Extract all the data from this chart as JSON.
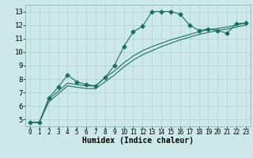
{
  "xlabel": "Humidex (Indice chaleur)",
  "ylabel": "",
  "xlim": [
    -0.5,
    23.5
  ],
  "ylim": [
    4.5,
    13.5
  ],
  "xticks": [
    0,
    1,
    2,
    3,
    4,
    5,
    6,
    7,
    8,
    9,
    10,
    11,
    12,
    13,
    14,
    15,
    16,
    17,
    18,
    19,
    20,
    21,
    22,
    23
  ],
  "yticks": [
    5,
    6,
    7,
    8,
    9,
    10,
    11,
    12,
    13
  ],
  "bg_color": "#cce8e8",
  "grid_color": "#b8d8d8",
  "line_color": "#1a7060",
  "series1": [
    [
      0,
      4.8
    ],
    [
      1,
      4.8
    ],
    [
      2,
      6.6
    ],
    [
      3,
      7.4
    ],
    [
      4,
      8.3
    ],
    [
      5,
      7.8
    ],
    [
      6,
      7.6
    ],
    [
      7,
      7.5
    ],
    [
      8,
      8.1
    ],
    [
      9,
      9.0
    ],
    [
      10,
      10.4
    ],
    [
      11,
      11.5
    ],
    [
      12,
      11.9
    ],
    [
      13,
      13.0
    ],
    [
      14,
      13.0
    ],
    [
      15,
      13.0
    ],
    [
      16,
      12.8
    ],
    [
      17,
      12.0
    ],
    [
      18,
      11.6
    ],
    [
      19,
      11.7
    ],
    [
      20,
      11.6
    ],
    [
      21,
      11.4
    ],
    [
      22,
      12.1
    ],
    [
      23,
      12.15
    ]
  ],
  "series2": [
    [
      0,
      4.8
    ],
    [
      1,
      4.8
    ],
    [
      2,
      6.5
    ],
    [
      3,
      7.1
    ],
    [
      4,
      7.7
    ],
    [
      5,
      7.6
    ],
    [
      6,
      7.5
    ],
    [
      7,
      7.5
    ],
    [
      8,
      8.1
    ],
    [
      9,
      8.6
    ],
    [
      10,
      9.2
    ],
    [
      11,
      9.7
    ],
    [
      12,
      10.1
    ],
    [
      13,
      10.4
    ],
    [
      14,
      10.65
    ],
    [
      15,
      10.9
    ],
    [
      16,
      11.1
    ],
    [
      17,
      11.3
    ],
    [
      18,
      11.5
    ],
    [
      19,
      11.65
    ],
    [
      20,
      11.75
    ],
    [
      21,
      11.85
    ],
    [
      22,
      12.0
    ],
    [
      23,
      12.15
    ]
  ],
  "series3": [
    [
      0,
      4.8
    ],
    [
      1,
      4.8
    ],
    [
      2,
      6.3
    ],
    [
      3,
      6.9
    ],
    [
      4,
      7.5
    ],
    [
      5,
      7.4
    ],
    [
      6,
      7.3
    ],
    [
      7,
      7.3
    ],
    [
      8,
      7.8
    ],
    [
      9,
      8.3
    ],
    [
      10,
      8.9
    ],
    [
      11,
      9.4
    ],
    [
      12,
      9.8
    ],
    [
      13,
      10.1
    ],
    [
      14,
      10.4
    ],
    [
      15,
      10.65
    ],
    [
      16,
      10.9
    ],
    [
      17,
      11.1
    ],
    [
      18,
      11.3
    ],
    [
      19,
      11.45
    ],
    [
      20,
      11.6
    ],
    [
      21,
      11.7
    ],
    [
      22,
      11.85
    ],
    [
      23,
      12.0
    ]
  ],
  "xlabel_fontsize": 7,
  "tick_fontsize_x": 5.5,
  "tick_fontsize_y": 6.5,
  "marker_size": 2.5
}
